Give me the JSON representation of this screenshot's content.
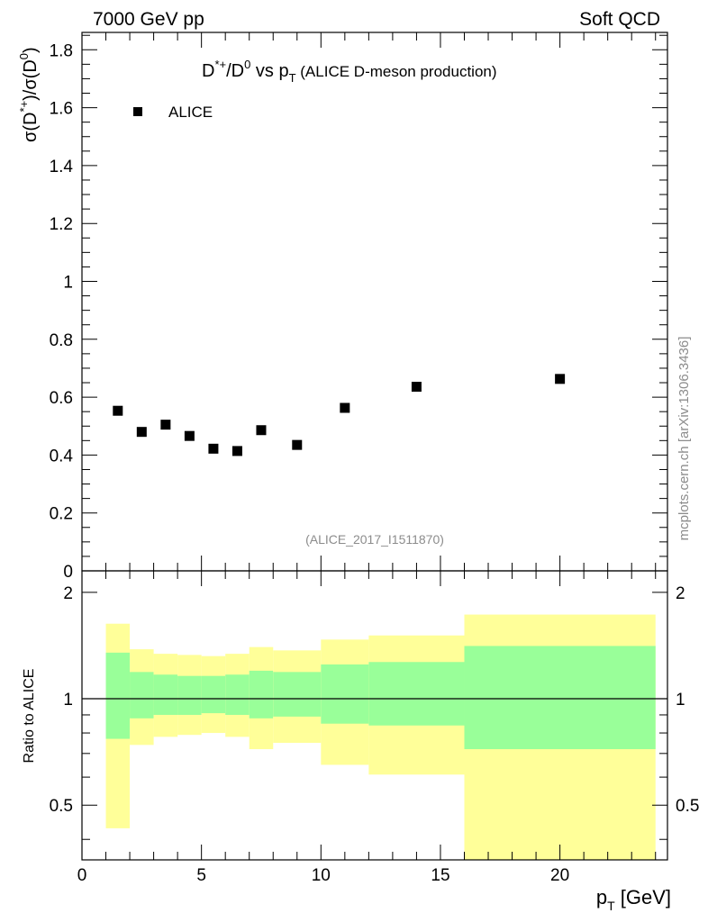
{
  "header": {
    "left": "7000 GeV pp",
    "right": "Soft QCD"
  },
  "side_label": "mcplots.cern.ch [arXiv:1306.3436]",
  "watermark": "(ALICE_2017_I1511870)",
  "colors": {
    "band_outer": "#ffff99",
    "band_inner": "#99ff99",
    "marker": "#000000"
  },
  "chart_data": [
    {
      "type": "scatter",
      "title": "D*+/D0 vs pT (ALICE D-meson production)",
      "title_parts": {
        "main": "D",
        "main_sup": "*+",
        "slash": "/D",
        "slash_sup": "0",
        "vs": " vs p",
        "vs_sub": "T",
        "tail": " (ALICE D-meson production)"
      },
      "ylabel": "σ(D*+)/σ(D0)",
      "ylabel_parts": {
        "a": "σ(D",
        "a_sup": "*+",
        "b": ")/σ(D",
        "b_sup": "0",
        "c": ")"
      },
      "xlim": [
        0,
        24.5
      ],
      "ylim": [
        0,
        1.86
      ],
      "yticks": [
        0,
        0.2,
        0.4,
        0.6,
        0.8,
        1,
        1.2,
        1.4,
        1.6,
        1.8
      ],
      "ytick_labels": [
        "0",
        "0.2",
        "0.4",
        "0.6",
        "0.8",
        "1",
        "1.2",
        "1.4",
        "1.6",
        "1.8"
      ],
      "legend": {
        "placement": "top-left",
        "entries": [
          "ALICE"
        ]
      },
      "series": [
        {
          "name": "ALICE",
          "x": [
            1.5,
            2.5,
            3.5,
            4.5,
            5.5,
            6.5,
            7.5,
            9,
            11,
            14,
            20
          ],
          "y": [
            0.553,
            0.48,
            0.505,
            0.466,
            0.422,
            0.414,
            0.486,
            0.435,
            0.563,
            0.636,
            0.663
          ]
        }
      ]
    },
    {
      "type": "area",
      "ylabel": "Ratio to ALICE",
      "xlabel": "pT [GeV]",
      "xlabel_parts": {
        "a": "p",
        "a_sub": "T",
        "b": " [GeV]"
      },
      "xlim": [
        0,
        24.5
      ],
      "ylim": [
        0.35,
        2.3
      ],
      "xticks": [
        0,
        5,
        10,
        15,
        20
      ],
      "xtick_labels": [
        "0",
        "5",
        "10",
        "15",
        "20"
      ],
      "yticks": [
        0.5,
        1,
        2
      ],
      "ytick_labels": [
        "0.5",
        "1",
        "2"
      ],
      "reference_line": 1,
      "bins": {
        "edges": [
          1,
          2,
          3,
          4,
          5,
          6,
          7,
          8,
          10,
          12,
          16,
          24
        ],
        "outer_low": [
          0.43,
          0.74,
          0.78,
          0.79,
          0.8,
          0.78,
          0.72,
          0.75,
          0.65,
          0.61,
          0.35
        ],
        "outer_high": [
          1.63,
          1.38,
          1.34,
          1.33,
          1.32,
          1.34,
          1.4,
          1.37,
          1.47,
          1.51,
          1.73
        ],
        "inner_low": [
          0.77,
          0.88,
          0.9,
          0.9,
          0.91,
          0.9,
          0.88,
          0.89,
          0.85,
          0.84,
          0.72
        ],
        "inner_high": [
          1.35,
          1.19,
          1.17,
          1.16,
          1.16,
          1.17,
          1.2,
          1.19,
          1.25,
          1.27,
          1.41
        ]
      }
    }
  ]
}
